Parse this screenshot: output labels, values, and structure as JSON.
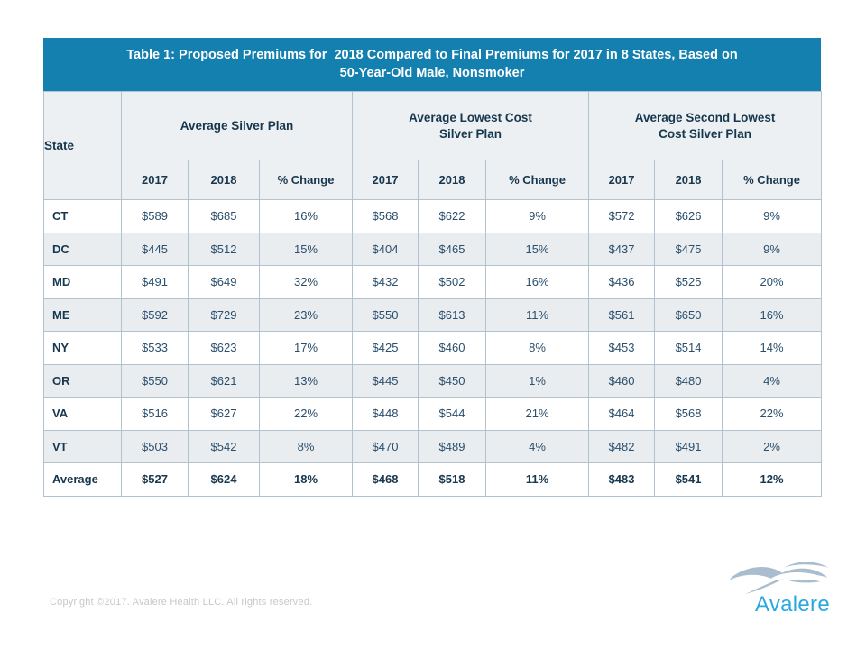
{
  "title": "Table 1: Proposed Premiums for  2018 Compared to Final Premiums for 2017 in 8 States, Based on\n50-Year-Old Male, Nonsmoker",
  "table": {
    "state_header": "State",
    "groups": [
      {
        "label": "Average Silver Plan"
      },
      {
        "label": "Average Lowest Cost\nSilver Plan"
      },
      {
        "label": "Average Second Lowest\nCost Silver Plan"
      }
    ],
    "sub_headers": [
      "2017",
      "2018",
      "% Change"
    ],
    "rows": [
      {
        "state": "CT",
        "values": [
          "$589",
          "$685",
          "16%",
          "$568",
          "$622",
          "9%",
          "$572",
          "$626",
          "9%"
        ]
      },
      {
        "state": "DC",
        "values": [
          "$445",
          "$512",
          "15%",
          "$404",
          "$465",
          "15%",
          "$437",
          "$475",
          "9%"
        ]
      },
      {
        "state": "MD",
        "values": [
          "$491",
          "$649",
          "32%",
          "$432",
          "$502",
          "16%",
          "$436",
          "$525",
          "20%"
        ]
      },
      {
        "state": "ME",
        "values": [
          "$592",
          "$729",
          "23%",
          "$550",
          "$613",
          "11%",
          "$561",
          "$650",
          "16%"
        ]
      },
      {
        "state": "NY",
        "values": [
          "$533",
          "$623",
          "17%",
          "$425",
          "$460",
          "8%",
          "$453",
          "$514",
          "14%"
        ]
      },
      {
        "state": "OR",
        "values": [
          "$550",
          "$621",
          "13%",
          "$445",
          "$450",
          "1%",
          "$460",
          "$480",
          "4%"
        ]
      },
      {
        "state": "VA",
        "values": [
          "$516",
          "$627",
          "22%",
          "$448",
          "$544",
          "21%",
          "$464",
          "$568",
          "22%"
        ]
      },
      {
        "state": "VT",
        "values": [
          "$503",
          "$542",
          "8%",
          "$470",
          "$489",
          "4%",
          "$482",
          "$491",
          "2%"
        ]
      },
      {
        "state": "Average",
        "values": [
          "$527",
          "$624",
          "18%",
          "$468",
          "$518",
          "11%",
          "$483",
          "$541",
          "12%"
        ],
        "bold": true
      }
    ]
  },
  "footer": {
    "copyright": "Copyright ©2017. Avalere Health LLC. All rights reserved.",
    "logo_text": "Avalere"
  },
  "colors": {
    "title_bar": "#1380b0",
    "header_bg": "#edf0f2",
    "row_alt_bg": "#eaedf0",
    "border": "#b3c2cf",
    "header_text": "#17374e",
    "data_text": "#2a4e6c",
    "logo_blue": "#2aa9e0",
    "logo_waves": "#a9bdce",
    "copyright_text": "#c8c8c8"
  }
}
